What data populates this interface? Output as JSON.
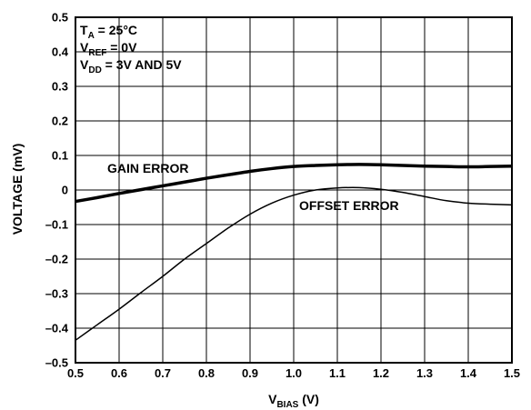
{
  "chart_data": {
    "type": "line",
    "xlim": [
      0.5,
      1.5
    ],
    "ylim": [
      -0.5,
      0.5
    ],
    "x_ticks": [
      "0.5",
      "0.6",
      "0.7",
      "0.8",
      "0.9",
      "1.0",
      "1.1",
      "1.2",
      "1.3",
      "1.4",
      "1.5"
    ],
    "y_ticks": [
      "0.5",
      "0.4",
      "0.3",
      "0.2",
      "0.1",
      "0",
      "–0.1",
      "–0.2",
      "–0.3",
      "–0.4",
      "–0.5"
    ],
    "xlabel": {
      "main": "V",
      "sub": "BIAS",
      "rest": " (V)"
    },
    "ylabel": "VOLTAGE (mV)",
    "grid": true,
    "conditions": [
      {
        "main": "T",
        "sub": "A",
        "rest": " = 25°C"
      },
      {
        "main": "V",
        "sub": "REF",
        "rest": " = 0V"
      },
      {
        "main": "V",
        "sub": "DD",
        "rest": " = 3V AND 5V"
      }
    ],
    "series": [
      {
        "name": "GAIN ERROR",
        "stroke_width": 3.5,
        "x": [
          0.5,
          0.55,
          0.6,
          0.65,
          0.7,
          0.75,
          0.8,
          0.85,
          0.9,
          0.95,
          1.0,
          1.05,
          1.1,
          1.15,
          1.2,
          1.25,
          1.3,
          1.35,
          1.4,
          1.45,
          1.5
        ],
        "y": [
          -0.033,
          -0.022,
          -0.01,
          0.001,
          0.012,
          0.023,
          0.034,
          0.044,
          0.054,
          0.062,
          0.068,
          0.071,
          0.073,
          0.074,
          0.073,
          0.071,
          0.069,
          0.068,
          0.067,
          0.068,
          0.069
        ]
      },
      {
        "name": "OFFSET ERROR",
        "stroke_width": 1.5,
        "x": [
          0.5,
          0.55,
          0.6,
          0.65,
          0.7,
          0.75,
          0.8,
          0.85,
          0.9,
          0.95,
          1.0,
          1.05,
          1.1,
          1.15,
          1.2,
          1.25,
          1.3,
          1.35,
          1.4,
          1.45,
          1.5
        ],
        "y": [
          -0.435,
          -0.39,
          -0.345,
          -0.297,
          -0.25,
          -0.2,
          -0.155,
          -0.11,
          -0.07,
          -0.038,
          -0.015,
          0.0,
          0.006,
          0.007,
          0.002,
          -0.007,
          -0.019,
          -0.031,
          -0.038,
          -0.041,
          -0.043
        ]
      }
    ]
  }
}
